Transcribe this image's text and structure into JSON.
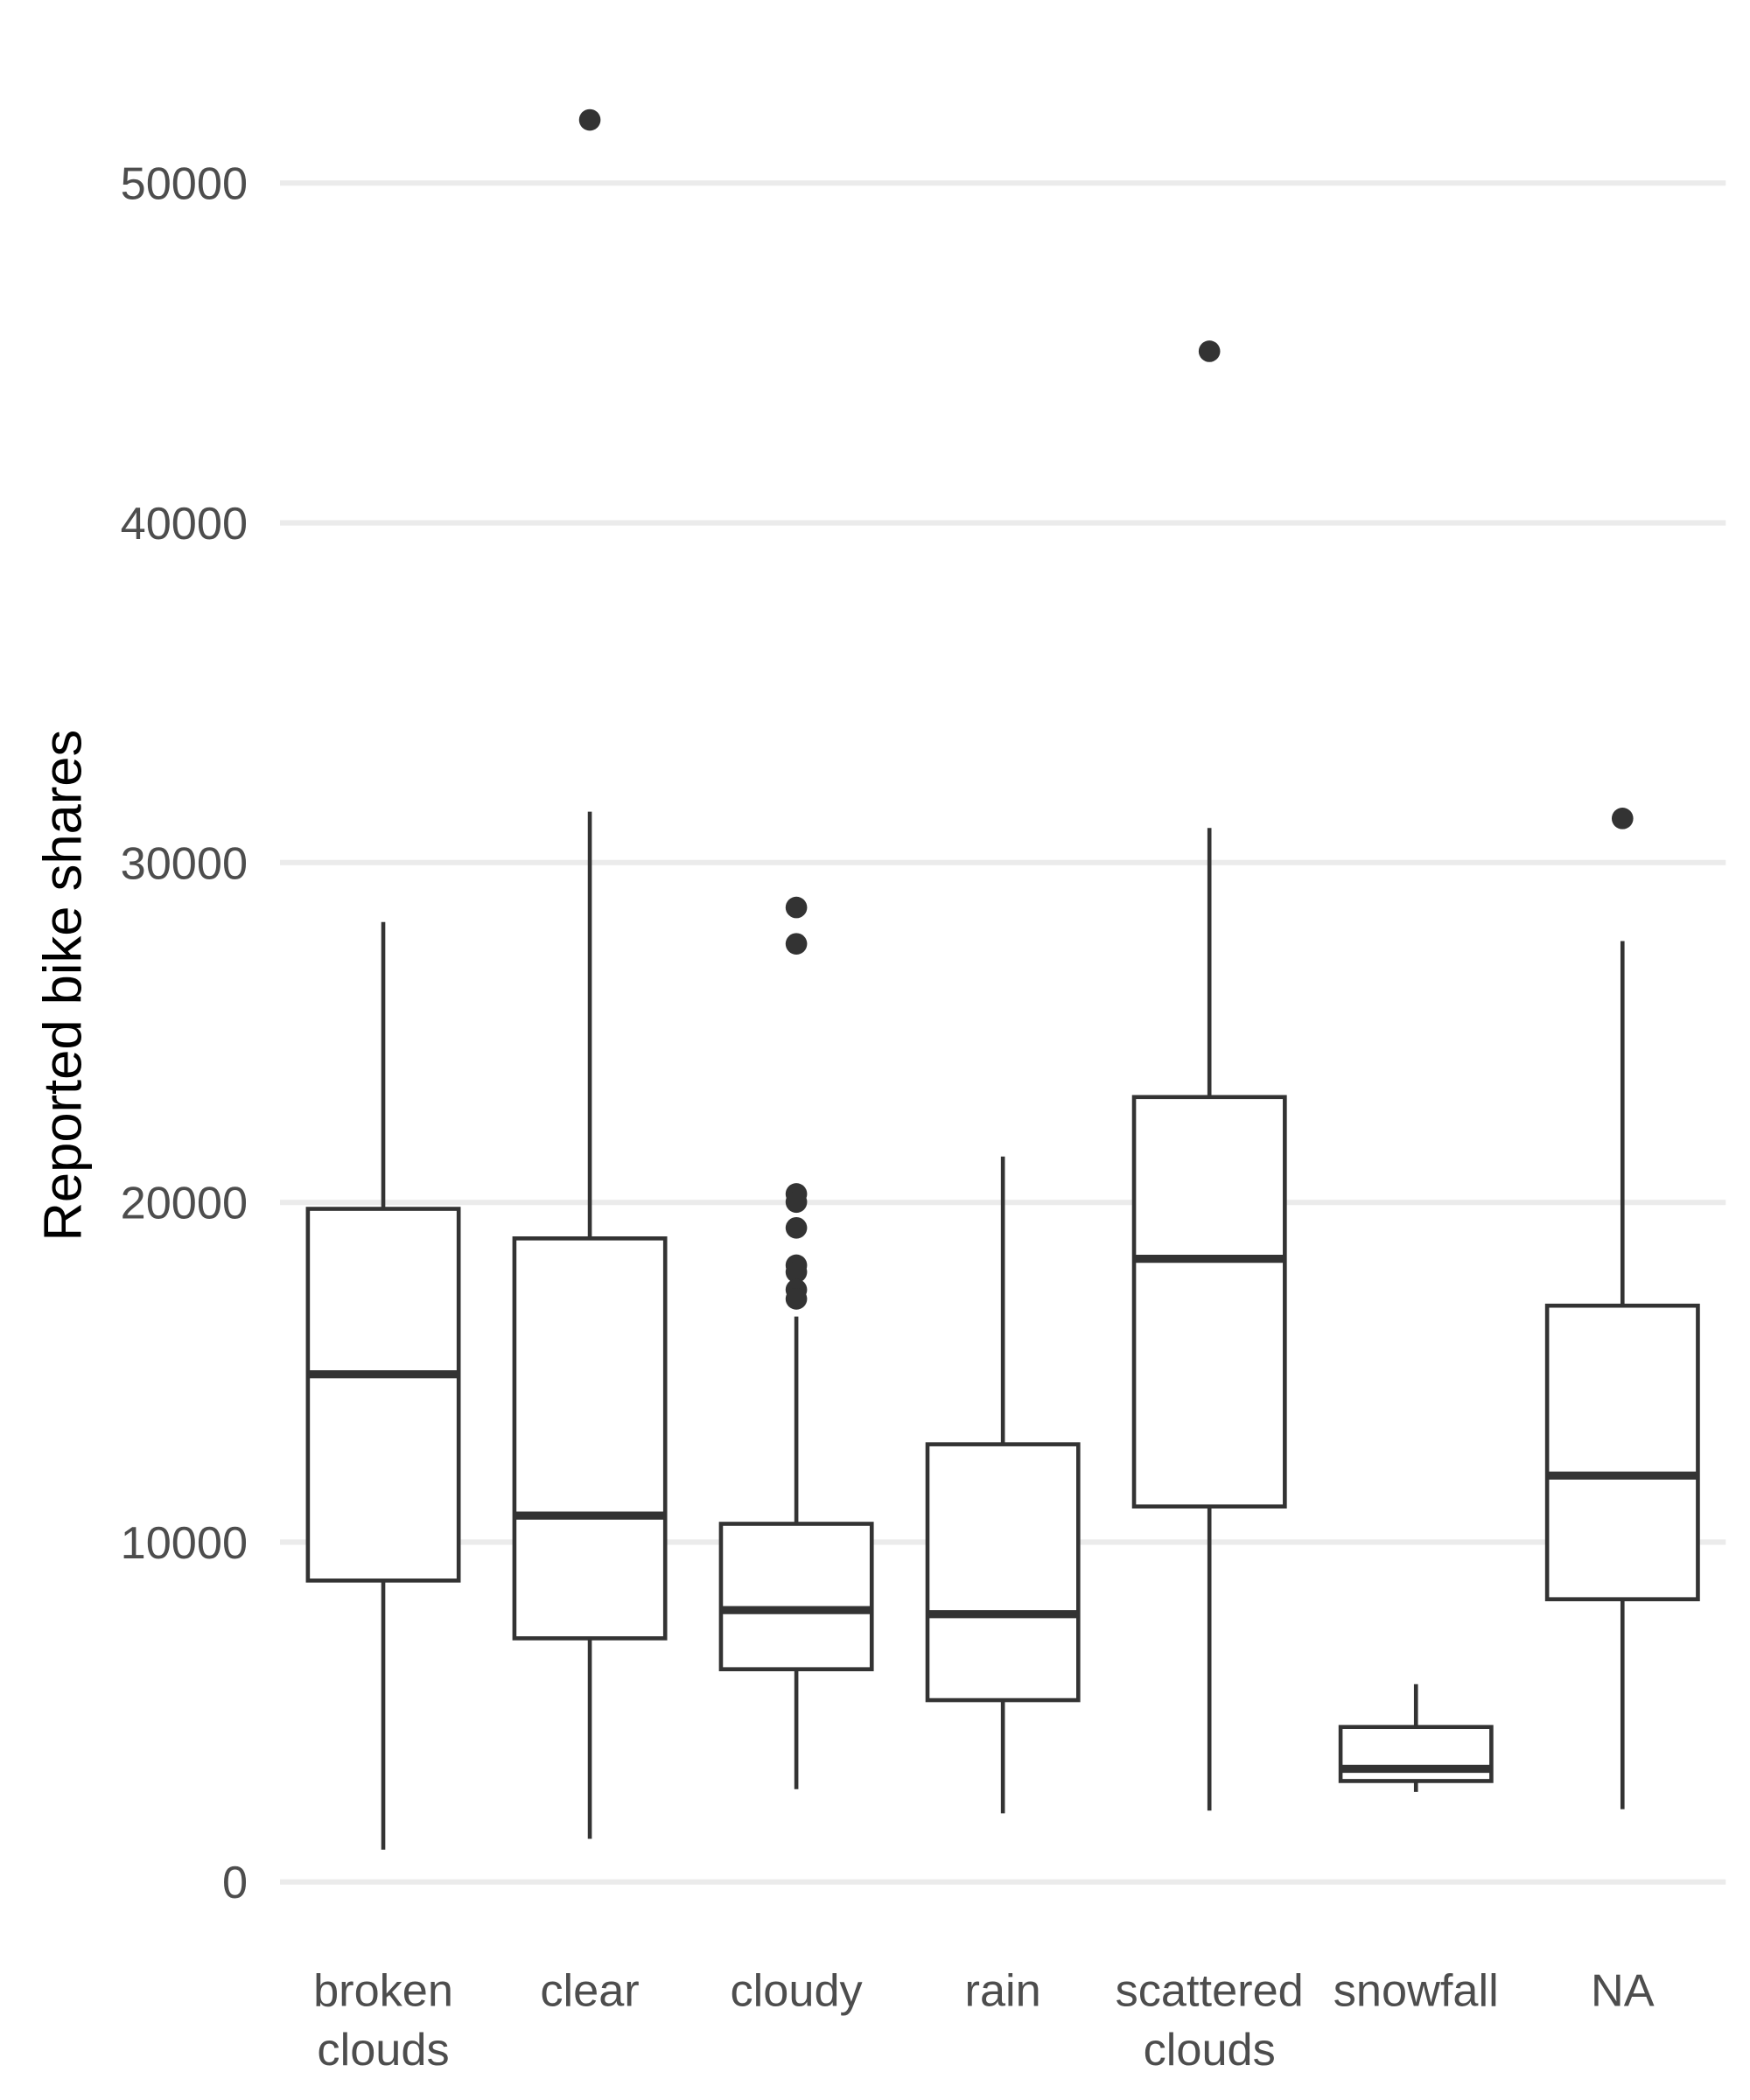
{
  "chart_data": {
    "type": "boxplot",
    "title": "",
    "xlabel": "",
    "ylabel": "Reported bike shares",
    "ylim": [
      0,
      50000
    ],
    "yticks": [
      0,
      10000,
      20000,
      30000,
      40000,
      50000
    ],
    "ytick_labels": [
      "0",
      "10000",
      "20000",
      "30000",
      "40000",
      "50000"
    ],
    "grid": true,
    "colors": {
      "stroke": "#333333",
      "grid": "#ebebeb",
      "tick_text": "#4d4d4d"
    },
    "categories": [
      {
        "label": [
          "broken",
          "clouds"
        ],
        "min": 950,
        "q1": 8870,
        "median": 14940,
        "q3": 19810,
        "max": 28250,
        "outliers": []
      },
      {
        "label": [
          "clear"
        ],
        "min": 1270,
        "q1": 7170,
        "median": 10780,
        "q3": 18940,
        "max": 31500,
        "outliers": [
          51860
        ]
      },
      {
        "label": [
          "cloudy"
        ],
        "min": 2730,
        "q1": 6260,
        "median": 8000,
        "q3": 10540,
        "max": 16640,
        "outliers": [
          28680,
          27610,
          20250,
          20010,
          19250,
          18150,
          17950,
          17430,
          17160
        ]
      },
      {
        "label": [
          "rain"
        ],
        "min": 2020,
        "q1": 5350,
        "median": 7880,
        "q3": 12880,
        "max": 21350,
        "outliers": []
      },
      {
        "label": [
          "scattered",
          "clouds"
        ],
        "min": 2100,
        "q1": 11050,
        "median": 18340,
        "q3": 23100,
        "max": 31020,
        "outliers": [
          45050
        ]
      },
      {
        "label": [
          "snowfall"
        ],
        "min": 2650,
        "q1": 2970,
        "median": 3330,
        "q3": 4560,
        "max": 5820,
        "outliers": []
      },
      {
        "label": [
          "NA"
        ],
        "min": 2140,
        "q1": 8320,
        "median": 11960,
        "q3": 16960,
        "max": 27690,
        "outliers": [
          31300
        ]
      }
    ]
  }
}
